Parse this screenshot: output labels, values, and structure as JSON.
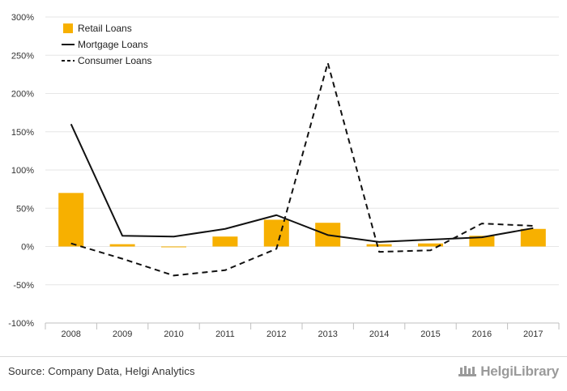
{
  "chart_data": {
    "type": "bar",
    "categories": [
      "2008",
      "2009",
      "2010",
      "2011",
      "2012",
      "2013",
      "2014",
      "2015",
      "2016",
      "2017"
    ],
    "series": [
      {
        "name": "Retail Loans",
        "type": "bar",
        "color": "#f7b000",
        "values": [
          70,
          3,
          -1,
          13,
          35,
          31,
          3,
          4,
          14,
          23
        ]
      },
      {
        "name": "Mortgage Loans",
        "type": "line",
        "style": "solid",
        "color": "#111111",
        "values": [
          160,
          14,
          13,
          23,
          41,
          15,
          6,
          9,
          12,
          24
        ]
      },
      {
        "name": "Consumer Loans",
        "type": "line",
        "style": "dashed",
        "color": "#111111",
        "values": [
          4,
          -16,
          -38,
          -31,
          -3,
          240,
          -7,
          -5,
          30,
          27
        ]
      }
    ],
    "ylim": [
      -100,
      300
    ],
    "yticks": [
      "-100%",
      "-50%",
      "0%",
      "50%",
      "100%",
      "150%",
      "200%",
      "250%",
      "300%"
    ],
    "ytick_values": [
      -100,
      -50,
      0,
      50,
      100,
      150,
      200,
      250,
      300
    ],
    "grid": true,
    "legend_placement": "top-left"
  },
  "footer": {
    "source": "Source: Company Data, Helgi Analytics",
    "brand": "HelgiLibrary"
  }
}
